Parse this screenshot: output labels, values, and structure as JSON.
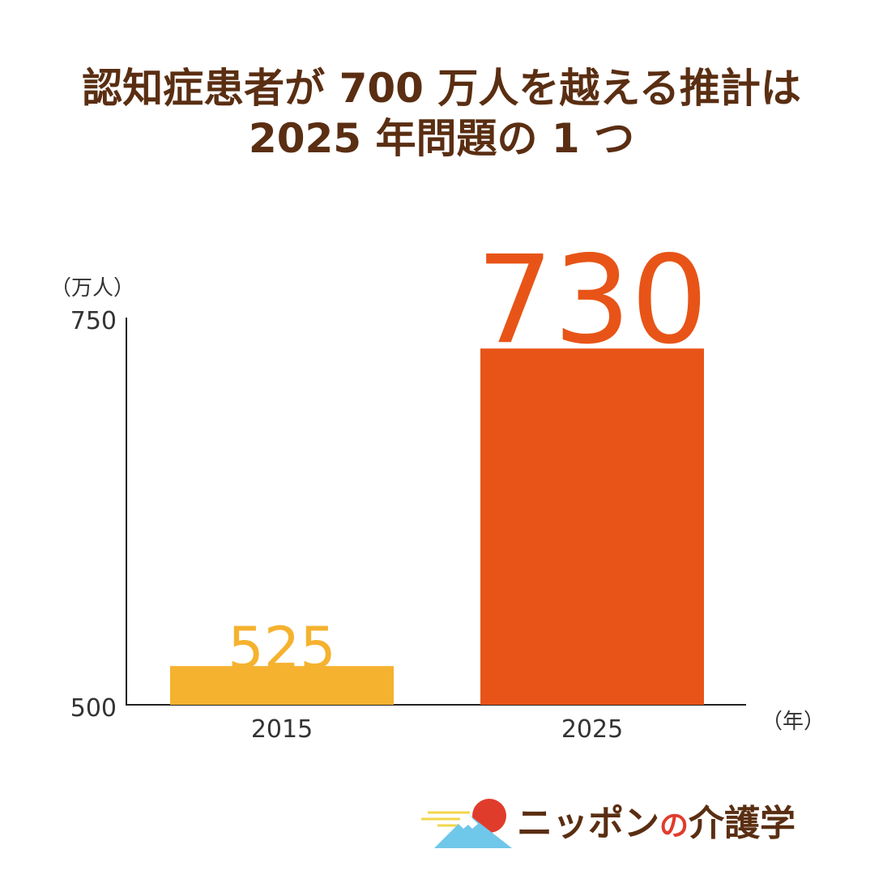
{
  "title_lines": [
    "認知症患者が 700 万人を越える推計は",
    "2025 年問題の 1 つ"
  ],
  "chart_data": {
    "type": "bar",
    "categories": [
      "2015",
      "2025"
    ],
    "values": [
      525,
      730
    ],
    "data_labels": [
      "525",
      "730"
    ],
    "colors": [
      "#f5b22f",
      "#e85417"
    ],
    "ylim": [
      500,
      750
    ],
    "yticks": [
      "500",
      "750"
    ],
    "ylabel": "（万人）",
    "xlabel": "（年）",
    "grid": false
  },
  "logo": {
    "text_before": "ニッポン",
    "text_no": "の",
    "text_after": "介護学",
    "colors": {
      "sun": "#e03c2c",
      "mountain": "#6fc7ea",
      "cloud": "#f2d64b"
    }
  }
}
